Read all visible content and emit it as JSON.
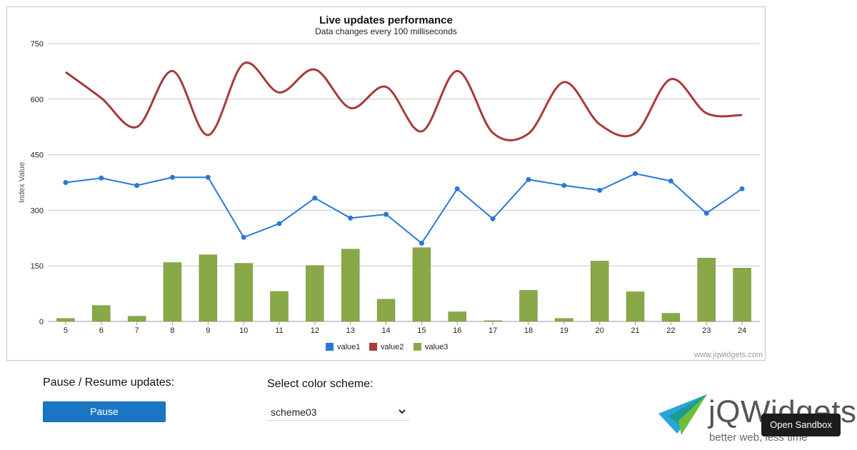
{
  "chart_data": {
    "type": "bar",
    "title": "Live updates performance",
    "subtitle": "Data changes every 100 milliseconds",
    "ylabel": "Index Value",
    "xlabel": "",
    "ylim": [
      0,
      750
    ],
    "y_ticks": [
      "0",
      "150",
      "300",
      "450",
      "600",
      "750"
    ],
    "categories": [
      "5",
      "6",
      "7",
      "8",
      "9",
      "10",
      "11",
      "12",
      "13",
      "14",
      "15",
      "16",
      "17",
      "18",
      "19",
      "20",
      "21",
      "22",
      "23",
      "24"
    ],
    "grid": true,
    "legend_position": "bottom",
    "series": [
      {
        "name": "value1",
        "render": "line-with-markers",
        "color": "#2a78d6",
        "values": [
          375,
          387,
          367,
          389,
          389,
          227,
          264,
          333,
          279,
          289,
          211,
          358,
          277,
          383,
          367,
          354,
          399,
          379,
          292,
          358
        ]
      },
      {
        "name": "value2",
        "render": "spline",
        "color": "#a83a3a",
        "values": [
          673,
          603,
          525,
          676,
          503,
          696,
          618,
          680,
          576,
          633,
          513,
          676,
          509,
          507,
          646,
          532,
          508,
          654,
          562,
          557
        ]
      },
      {
        "name": "value3",
        "render": "column",
        "color": "#89a848",
        "values": [
          8,
          43,
          14,
          159,
          180,
          157,
          81,
          151,
          195,
          60,
          199,
          26,
          2,
          84,
          8,
          163,
          80,
          22,
          171,
          144
        ]
      }
    ],
    "watermark": "www.jqwidgets.com"
  },
  "controls": {
    "pause_label_text": "Pause / Resume updates:",
    "pause_button_label": "Pause",
    "scheme_label_text": "Select color scheme:",
    "scheme_selected": "scheme03"
  },
  "brand": {
    "name": "jQWidgets",
    "tagline": "better web, less time",
    "sandbox_button_label": "Open Sandbox",
    "logo_colors": [
      "#2aa5d8",
      "#1b9c8e",
      "#6cbf3a"
    ]
  }
}
